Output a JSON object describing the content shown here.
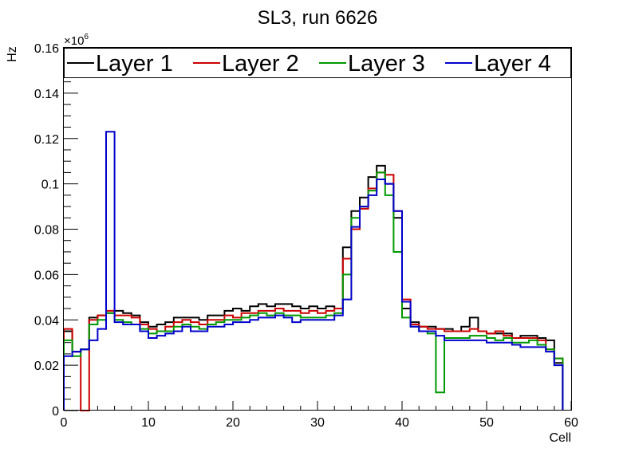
{
  "chart_data": {
    "type": "line",
    "title": "SL3, run 6626",
    "xlabel": "Cell",
    "ylabel": "Hz",
    "y_exponent_label": "×10",
    "y_exponent_power": "6",
    "xlim": [
      0,
      60
    ],
    "ylim": [
      0,
      0.16
    ],
    "x_ticks": [
      "0",
      "10",
      "20",
      "30",
      "40",
      "50",
      "60"
    ],
    "y_ticks": [
      "0",
      "0.02",
      "0.04",
      "0.06",
      "0.08",
      "0.1",
      "0.12",
      "0.14",
      "0.16"
    ],
    "legend_position": "top",
    "series": [
      {
        "name": "Layer 1",
        "color": "#000000",
        "values": [
          0.035,
          0.026,
          0.027,
          0.041,
          0.042,
          0.043,
          0.044,
          0.043,
          0.042,
          0.039,
          0.037,
          0.038,
          0.039,
          0.041,
          0.041,
          0.041,
          0.04,
          0.042,
          0.042,
          0.044,
          0.045,
          0.044,
          0.046,
          0.047,
          0.046,
          0.047,
          0.047,
          0.046,
          0.045,
          0.046,
          0.045,
          0.046,
          0.045,
          0.072,
          0.088,
          0.094,
          0.103,
          0.108,
          0.1,
          0.085,
          0.045,
          0.039,
          0.037,
          0.037,
          0.036,
          0.036,
          0.035,
          0.037,
          0.041,
          0.035,
          0.034,
          0.034,
          0.034,
          0.032,
          0.033,
          0.033,
          0.032,
          0.031,
          0.021
        ]
      },
      {
        "name": "Layer 2",
        "color": "#cc0000",
        "values": [
          0.036,
          0.026,
          0.0,
          0.04,
          0.042,
          0.044,
          0.042,
          0.042,
          0.041,
          0.038,
          0.036,
          0.035,
          0.037,
          0.039,
          0.04,
          0.039,
          0.038,
          0.04,
          0.04,
          0.042,
          0.041,
          0.043,
          0.043,
          0.044,
          0.044,
          0.045,
          0.044,
          0.044,
          0.043,
          0.044,
          0.043,
          0.044,
          0.045,
          0.067,
          0.08,
          0.089,
          0.098,
          0.105,
          0.104,
          0.088,
          0.049,
          0.038,
          0.037,
          0.036,
          0.036,
          0.035,
          0.035,
          0.035,
          0.036,
          0.035,
          0.034,
          0.035,
          0.033,
          0.032,
          0.032,
          0.032,
          0.031,
          0.027,
          0.023
        ]
      },
      {
        "name": "Layer 3",
        "color": "#009900",
        "values": [
          0.031,
          0.024,
          0.027,
          0.038,
          0.04,
          0.043,
          0.04,
          0.039,
          0.038,
          0.036,
          0.034,
          0.035,
          0.035,
          0.037,
          0.038,
          0.037,
          0.036,
          0.038,
          0.039,
          0.04,
          0.04,
          0.041,
          0.042,
          0.043,
          0.042,
          0.043,
          0.042,
          0.042,
          0.041,
          0.041,
          0.041,
          0.042,
          0.043,
          0.06,
          0.085,
          0.09,
          0.097,
          0.105,
          0.095,
          0.07,
          0.041,
          0.037,
          0.035,
          0.034,
          0.008,
          0.032,
          0.032,
          0.032,
          0.033,
          0.033,
          0.032,
          0.031,
          0.032,
          0.03,
          0.03,
          0.031,
          0.029,
          0.027,
          0.023
        ]
      },
      {
        "name": "Layer 4",
        "color": "#0000cc",
        "values": [
          0.024,
          0.026,
          0.027,
          0.031,
          0.036,
          0.123,
          0.039,
          0.038,
          0.038,
          0.035,
          0.032,
          0.033,
          0.034,
          0.035,
          0.037,
          0.035,
          0.035,
          0.037,
          0.037,
          0.038,
          0.039,
          0.039,
          0.04,
          0.041,
          0.041,
          0.042,
          0.041,
          0.039,
          0.04,
          0.04,
          0.04,
          0.04,
          0.042,
          0.049,
          0.081,
          0.09,
          0.095,
          0.102,
          0.1,
          0.088,
          0.048,
          0.037,
          0.035,
          0.035,
          0.033,
          0.031,
          0.031,
          0.031,
          0.031,
          0.031,
          0.03,
          0.03,
          0.03,
          0.029,
          0.028,
          0.028,
          0.028,
          0.026,
          0.02
        ]
      }
    ]
  }
}
